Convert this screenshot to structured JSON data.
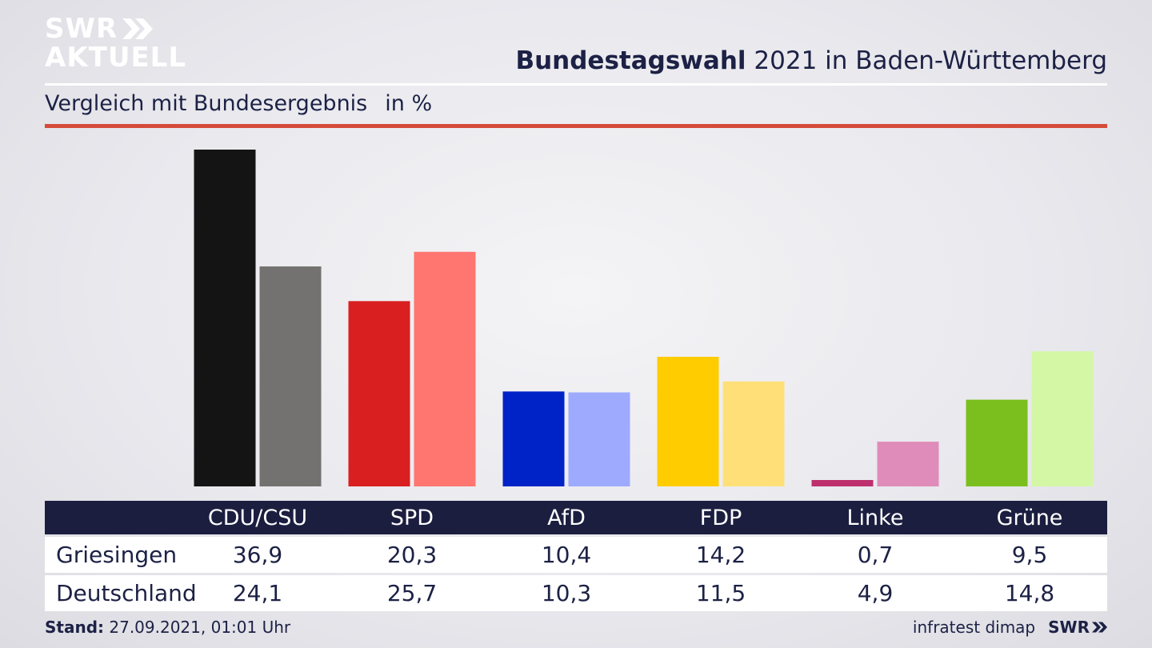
{
  "brand": {
    "logo_line1": "SWR",
    "logo_line2": "AKTUELL",
    "footer_logo": "SWR"
  },
  "header": {
    "title_bold": "Bundestagswahl",
    "title_rest": " 2021 in Baden-Württemberg",
    "subtitle": "Vergleich mit Bundesergebnis",
    "unit": "in %"
  },
  "footer": {
    "stand_label": "Stand:",
    "stand_value": " 27.09.2021, 01:01 Uhr",
    "source": "infratest dimap"
  },
  "chart_data": {
    "type": "bar",
    "categories": [
      "CDU/CSU",
      "SPD",
      "AfD",
      "FDP",
      "Linke",
      "Grüne"
    ],
    "series": [
      {
        "name": "Griesingen",
        "values": [
          36.9,
          20.3,
          10.4,
          14.2,
          0.7,
          9.5
        ],
        "display": [
          "36,9",
          "20,3",
          "10,4",
          "14,2",
          "0,7",
          "9,5"
        ],
        "colors": [
          "#141414",
          "#d91f1f",
          "#0023c8",
          "#ffcc00",
          "#be2f6e",
          "#7bbf1e"
        ]
      },
      {
        "name": "Deutschland",
        "values": [
          24.1,
          25.7,
          10.3,
          11.5,
          4.9,
          14.8
        ],
        "display": [
          "24,1",
          "25,7",
          "10,3",
          "11,5",
          "4,9",
          "14,8"
        ],
        "colors": [
          "#737270",
          "#ff7570",
          "#9eaafe",
          "#ffe078",
          "#e08cba",
          "#d4f7a6"
        ]
      }
    ],
    "ylim": [
      0,
      36.9
    ],
    "grid": false,
    "legend": "table below chart"
  }
}
